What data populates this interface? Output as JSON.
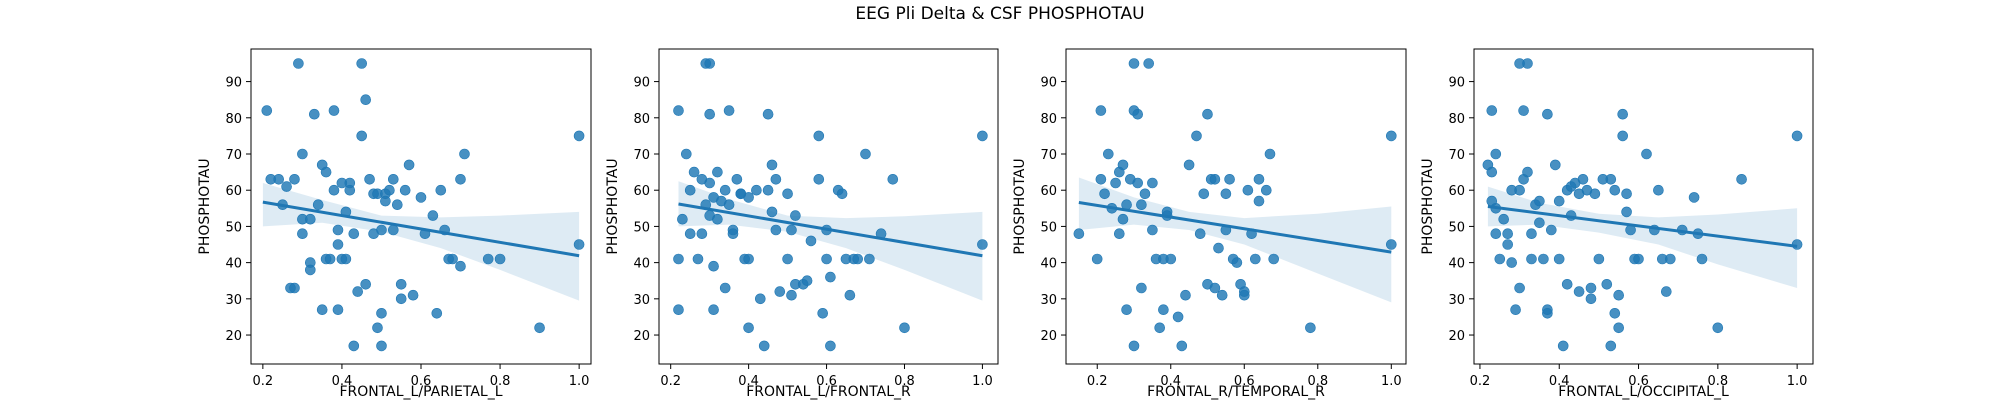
{
  "figure": {
    "title": "EEG Pli Delta & CSF PHOSPHOTAU",
    "colors": {
      "points": "#1f77b4",
      "line": "#1f77b4",
      "band": "#1f77b4"
    }
  },
  "chart_data": [
    {
      "type": "scatter",
      "title": "",
      "xlabel": "FRONTAL_L/PARIETAL_L",
      "ylabel": "PHOSPHOTAU",
      "xlim": [
        0.17,
        1.03
      ],
      "ylim": [
        12,
        99
      ],
      "xticks": [
        "0.2",
        "0.4",
        "0.6",
        "0.8",
        "1.0"
      ],
      "yticks": [
        "20",
        "30",
        "40",
        "50",
        "60",
        "70",
        "80",
        "90"
      ],
      "regression": {
        "x": [
          0.2,
          1.0
        ],
        "y": [
          56.7,
          41.9
        ]
      },
      "band": {
        "x": [
          0.2,
          0.35,
          0.5,
          0.65,
          0.8,
          1.0
        ],
        "upper": [
          62.0,
          57.3,
          53.0,
          52.5,
          53.0,
          54.0
        ],
        "lower": [
          50.0,
          51.0,
          48.5,
          44.0,
          38.0,
          29.5
        ]
      },
      "points": [
        [
          0.21,
          82
        ],
        [
          0.22,
          63
        ],
        [
          0.24,
          63
        ],
        [
          0.25,
          56
        ],
        [
          0.26,
          61
        ],
        [
          0.27,
          33
        ],
        [
          0.28,
          33
        ],
        [
          0.28,
          63
        ],
        [
          0.29,
          95
        ],
        [
          0.3,
          70
        ],
        [
          0.3,
          48
        ],
        [
          0.3,
          52
        ],
        [
          0.32,
          40
        ],
        [
          0.32,
          52
        ],
        [
          0.32,
          38
        ],
        [
          0.33,
          81
        ],
        [
          0.34,
          56
        ],
        [
          0.35,
          67
        ],
        [
          0.35,
          27
        ],
        [
          0.36,
          41
        ],
        [
          0.36,
          65
        ],
        [
          0.37,
          41
        ],
        [
          0.38,
          60
        ],
        [
          0.38,
          82
        ],
        [
          0.39,
          27
        ],
        [
          0.39,
          49
        ],
        [
          0.39,
          45
        ],
        [
          0.4,
          62
        ],
        [
          0.4,
          41
        ],
        [
          0.41,
          54
        ],
        [
          0.41,
          41
        ],
        [
          0.42,
          60
        ],
        [
          0.42,
          62
        ],
        [
          0.43,
          17
        ],
        [
          0.43,
          48
        ],
        [
          0.44,
          32
        ],
        [
          0.45,
          95
        ],
        [
          0.45,
          75
        ],
        [
          0.46,
          85
        ],
        [
          0.46,
          34
        ],
        [
          0.47,
          63
        ],
        [
          0.48,
          48
        ],
        [
          0.48,
          59
        ],
        [
          0.49,
          22
        ],
        [
          0.49,
          59
        ],
        [
          0.5,
          17
        ],
        [
          0.5,
          26
        ],
        [
          0.5,
          49
        ],
        [
          0.51,
          57
        ],
        [
          0.51,
          59
        ],
        [
          0.52,
          60
        ],
        [
          0.53,
          63
        ],
        [
          0.53,
          49
        ],
        [
          0.54,
          56
        ],
        [
          0.55,
          30
        ],
        [
          0.55,
          34
        ],
        [
          0.56,
          60
        ],
        [
          0.57,
          67
        ],
        [
          0.58,
          31
        ],
        [
          0.6,
          58
        ],
        [
          0.61,
          48
        ],
        [
          0.63,
          53
        ],
        [
          0.64,
          26
        ],
        [
          0.65,
          60
        ],
        [
          0.66,
          49
        ],
        [
          0.67,
          41
        ],
        [
          0.68,
          41
        ],
        [
          0.7,
          39
        ],
        [
          0.7,
          63
        ],
        [
          0.71,
          70
        ],
        [
          0.77,
          41
        ],
        [
          0.8,
          41
        ],
        [
          0.9,
          22
        ],
        [
          1.0,
          75
        ],
        [
          1.0,
          45
        ]
      ]
    },
    {
      "type": "scatter",
      "title": "",
      "xlabel": "FRONTAL_L/FRONTAL_R",
      "ylabel": "PHOSPHOTAU",
      "xlim": [
        0.17,
        1.04
      ],
      "ylim": [
        12,
        99
      ],
      "xticks": [
        "0.2",
        "0.4",
        "0.6",
        "0.8",
        "1.0"
      ],
      "yticks": [
        "20",
        "30",
        "40",
        "50",
        "60",
        "70",
        "80",
        "90"
      ],
      "regression": {
        "x": [
          0.22,
          1.0
        ],
        "y": [
          56.2,
          41.9
        ]
      },
      "band": {
        "x": [
          0.22,
          0.35,
          0.5,
          0.65,
          0.8,
          1.0
        ],
        "upper": [
          62.5,
          57.5,
          53.0,
          52.3,
          52.8,
          54.0
        ],
        "lower": [
          50.0,
          50.5,
          48.5,
          44.0,
          38.0,
          29.5
        ]
      },
      "points": [
        [
          0.22,
          82
        ],
        [
          0.22,
          27
        ],
        [
          0.22,
          41
        ],
        [
          0.23,
          52
        ],
        [
          0.24,
          70
        ],
        [
          0.25,
          60
        ],
        [
          0.25,
          48
        ],
        [
          0.26,
          65
        ],
        [
          0.27,
          41
        ],
        [
          0.28,
          48
        ],
        [
          0.28,
          63
        ],
        [
          0.29,
          56
        ],
        [
          0.29,
          95
        ],
        [
          0.3,
          95
        ],
        [
          0.3,
          81
        ],
        [
          0.3,
          62
        ],
        [
          0.3,
          53
        ],
        [
          0.31,
          58
        ],
        [
          0.31,
          27
        ],
        [
          0.31,
          39
        ],
        [
          0.32,
          65
        ],
        [
          0.32,
          52
        ],
        [
          0.33,
          57
        ],
        [
          0.34,
          33
        ],
        [
          0.34,
          60
        ],
        [
          0.35,
          82
        ],
        [
          0.35,
          56
        ],
        [
          0.36,
          49
        ],
        [
          0.36,
          48
        ],
        [
          0.37,
          63
        ],
        [
          0.38,
          59
        ],
        [
          0.38,
          59
        ],
        [
          0.39,
          41
        ],
        [
          0.4,
          22
        ],
        [
          0.4,
          41
        ],
        [
          0.4,
          58
        ],
        [
          0.42,
          60
        ],
        [
          0.43,
          30
        ],
        [
          0.44,
          17
        ],
        [
          0.45,
          81
        ],
        [
          0.45,
          60
        ],
        [
          0.46,
          67
        ],
        [
          0.46,
          54
        ],
        [
          0.47,
          49
        ],
        [
          0.47,
          63
        ],
        [
          0.48,
          32
        ],
        [
          0.5,
          59
        ],
        [
          0.5,
          41
        ],
        [
          0.51,
          31
        ],
        [
          0.51,
          49
        ],
        [
          0.52,
          53
        ],
        [
          0.52,
          34
        ],
        [
          0.54,
          34
        ],
        [
          0.55,
          35
        ],
        [
          0.56,
          46
        ],
        [
          0.58,
          75
        ],
        [
          0.58,
          63
        ],
        [
          0.59,
          26
        ],
        [
          0.6,
          49
        ],
        [
          0.6,
          41
        ],
        [
          0.61,
          17
        ],
        [
          0.61,
          36
        ],
        [
          0.63,
          60
        ],
        [
          0.64,
          59
        ],
        [
          0.65,
          41
        ],
        [
          0.66,
          31
        ],
        [
          0.67,
          41
        ],
        [
          0.68,
          41
        ],
        [
          0.7,
          70
        ],
        [
          0.71,
          41
        ],
        [
          0.74,
          48
        ],
        [
          0.77,
          63
        ],
        [
          0.8,
          22
        ],
        [
          1.0,
          75
        ],
        [
          1.0,
          45
        ]
      ]
    },
    {
      "type": "scatter",
      "title": "",
      "xlabel": "FRONTAL_R/TEMPORAL_R",
      "ylabel": "PHOSPHOTAU",
      "xlim": [
        0.115,
        1.04
      ],
      "ylim": [
        12,
        99
      ],
      "xticks": [
        "0.2",
        "0.4",
        "0.6",
        "0.8",
        "1.0"
      ],
      "yticks": [
        "20",
        "30",
        "40",
        "50",
        "60",
        "70",
        "80",
        "90"
      ],
      "regression": {
        "x": [
          0.15,
          1.0
        ],
        "y": [
          56.6,
          42.9
        ]
      },
      "band": {
        "x": [
          0.15,
          0.3,
          0.45,
          0.6,
          0.8,
          1.0
        ],
        "upper": [
          63.5,
          58.0,
          54.0,
          52.3,
          53.5,
          55.5
        ],
        "lower": [
          49.0,
          50.5,
          49.0,
          45.0,
          37.0,
          29.0
        ]
      },
      "points": [
        [
          0.15,
          48
        ],
        [
          0.2,
          41
        ],
        [
          0.21,
          63
        ],
        [
          0.21,
          82
        ],
        [
          0.22,
          59
        ],
        [
          0.23,
          70
        ],
        [
          0.24,
          55
        ],
        [
          0.25,
          62
        ],
        [
          0.26,
          65
        ],
        [
          0.26,
          48
        ],
        [
          0.27,
          52
        ],
        [
          0.27,
          67
        ],
        [
          0.28,
          27
        ],
        [
          0.28,
          56
        ],
        [
          0.29,
          63
        ],
        [
          0.3,
          95
        ],
        [
          0.3,
          17
        ],
        [
          0.3,
          82
        ],
        [
          0.31,
          62
        ],
        [
          0.31,
          81
        ],
        [
          0.32,
          33
        ],
        [
          0.32,
          56
        ],
        [
          0.33,
          59
        ],
        [
          0.34,
          95
        ],
        [
          0.35,
          49
        ],
        [
          0.35,
          62
        ],
        [
          0.36,
          41
        ],
        [
          0.37,
          22
        ],
        [
          0.38,
          41
        ],
        [
          0.38,
          27
        ],
        [
          0.39,
          53
        ],
        [
          0.39,
          54
        ],
        [
          0.4,
          41
        ],
        [
          0.42,
          25
        ],
        [
          0.43,
          17
        ],
        [
          0.44,
          31
        ],
        [
          0.45,
          67
        ],
        [
          0.47,
          75
        ],
        [
          0.48,
          48
        ],
        [
          0.49,
          59
        ],
        [
          0.5,
          34
        ],
        [
          0.5,
          81
        ],
        [
          0.51,
          63
        ],
        [
          0.52,
          63
        ],
        [
          0.52,
          33
        ],
        [
          0.53,
          44
        ],
        [
          0.54,
          31
        ],
        [
          0.55,
          59
        ],
        [
          0.55,
          49
        ],
        [
          0.56,
          63
        ],
        [
          0.57,
          41
        ],
        [
          0.58,
          40
        ],
        [
          0.59,
          34
        ],
        [
          0.6,
          31
        ],
        [
          0.6,
          32
        ],
        [
          0.61,
          60
        ],
        [
          0.62,
          48
        ],
        [
          0.63,
          41
        ],
        [
          0.64,
          63
        ],
        [
          0.64,
          57
        ],
        [
          0.66,
          60
        ],
        [
          0.67,
          70
        ],
        [
          0.68,
          41
        ],
        [
          0.78,
          22
        ],
        [
          1.0,
          75
        ],
        [
          1.0,
          45
        ]
      ]
    },
    {
      "type": "scatter",
      "title": "",
      "xlabel": "FRONTAL_L/OCCIPITAL_L",
      "ylabel": "PHOSPHOTAU",
      "xlim": [
        0.185,
        1.04
      ],
      "ylim": [
        12,
        99
      ],
      "xticks": [
        "0.2",
        "0.4",
        "0.6",
        "0.8",
        "1.0"
      ],
      "yticks": [
        "20",
        "30",
        "40",
        "50",
        "60",
        "70",
        "80",
        "90"
      ],
      "regression": {
        "x": [
          0.22,
          1.0
        ],
        "y": [
          55.5,
          44.5
        ]
      },
      "band": {
        "x": [
          0.22,
          0.35,
          0.5,
          0.65,
          0.8,
          1.0
        ],
        "upper": [
          61.0,
          56.5,
          53.5,
          52.5,
          53.3,
          55.0
        ],
        "lower": [
          50.0,
          50.5,
          48.3,
          45.0,
          39.5,
          33.0
        ]
      },
      "points": [
        [
          0.22,
          67
        ],
        [
          0.23,
          65
        ],
        [
          0.23,
          57
        ],
        [
          0.23,
          82
        ],
        [
          0.24,
          70
        ],
        [
          0.24,
          48
        ],
        [
          0.24,
          55
        ],
        [
          0.25,
          41
        ],
        [
          0.26,
          52
        ],
        [
          0.27,
          48
        ],
        [
          0.27,
          45
        ],
        [
          0.28,
          40
        ],
        [
          0.28,
          60
        ],
        [
          0.29,
          27
        ],
        [
          0.3,
          33
        ],
        [
          0.3,
          95
        ],
        [
          0.3,
          60
        ],
        [
          0.31,
          82
        ],
        [
          0.31,
          63
        ],
        [
          0.32,
          95
        ],
        [
          0.32,
          65
        ],
        [
          0.33,
          41
        ],
        [
          0.33,
          48
        ],
        [
          0.34,
          56
        ],
        [
          0.35,
          57
        ],
        [
          0.35,
          51
        ],
        [
          0.36,
          41
        ],
        [
          0.37,
          26
        ],
        [
          0.37,
          27
        ],
        [
          0.37,
          81
        ],
        [
          0.38,
          49
        ],
        [
          0.39,
          67
        ],
        [
          0.4,
          41
        ],
        [
          0.4,
          57
        ],
        [
          0.41,
          17
        ],
        [
          0.42,
          60
        ],
        [
          0.42,
          34
        ],
        [
          0.43,
          53
        ],
        [
          0.43,
          61
        ],
        [
          0.44,
          62
        ],
        [
          0.45,
          32
        ],
        [
          0.45,
          59
        ],
        [
          0.46,
          63
        ],
        [
          0.47,
          60
        ],
        [
          0.48,
          30
        ],
        [
          0.48,
          33
        ],
        [
          0.49,
          59
        ],
        [
          0.5,
          41
        ],
        [
          0.51,
          63
        ],
        [
          0.52,
          34
        ],
        [
          0.53,
          63
        ],
        [
          0.53,
          17
        ],
        [
          0.54,
          26
        ],
        [
          0.54,
          60
        ],
        [
          0.55,
          22
        ],
        [
          0.55,
          31
        ],
        [
          0.56,
          75
        ],
        [
          0.56,
          81
        ],
        [
          0.57,
          59
        ],
        [
          0.57,
          54
        ],
        [
          0.58,
          49
        ],
        [
          0.59,
          41
        ],
        [
          0.6,
          41
        ],
        [
          0.62,
          70
        ],
        [
          0.64,
          49
        ],
        [
          0.65,
          60
        ],
        [
          0.66,
          41
        ],
        [
          0.67,
          32
        ],
        [
          0.68,
          41
        ],
        [
          0.71,
          49
        ],
        [
          0.74,
          58
        ],
        [
          0.75,
          48
        ],
        [
          0.76,
          41
        ],
        [
          0.8,
          22
        ],
        [
          0.86,
          63
        ],
        [
          1.0,
          75
        ],
        [
          1.0,
          45
        ]
      ]
    }
  ]
}
